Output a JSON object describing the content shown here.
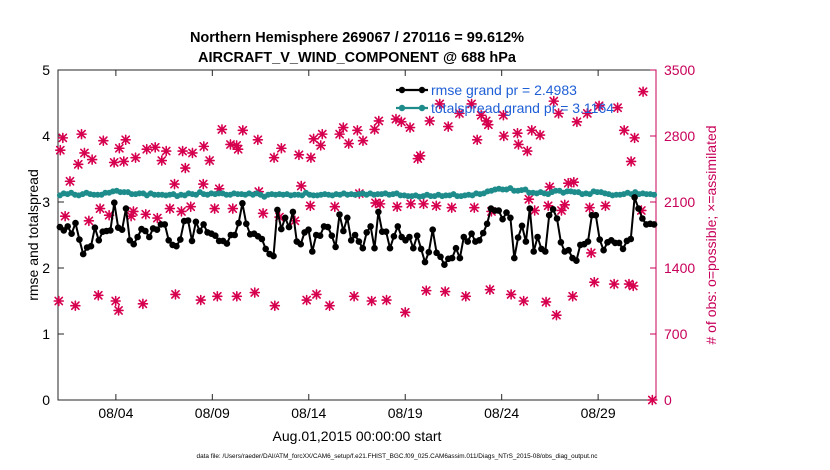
{
  "chart_data": {
    "type": "line",
    "title": [
      "Northern Hemisphere 269067 / 270116 = 99.612%",
      "AIRCRAFT_V_WIND_COMPONENT @ 688 hPa"
    ],
    "xlabel": "Aug.01,2015 00:00:00 start",
    "ylabel_left": "rmse and totalspread",
    "ylabel_right": "# of obs: o=possible; ×=assimilated",
    "footnote": "data file: /Users/raeder/DAI/ATM_forcXX/CAM6_setup/f.e21.FHIST_BGC.f09_025.CAM6assim.011/Diags_NTrS_2015-08/obs_diag_output.nc",
    "x_range_days": [
      0,
      31
    ],
    "xticks": [
      {
        "day": 3,
        "label": "08/04"
      },
      {
        "day": 8,
        "label": "08/09"
      },
      {
        "day": 13,
        "label": "08/14"
      },
      {
        "day": 18,
        "label": "08/19"
      },
      {
        "day": 23,
        "label": "08/24"
      },
      {
        "day": 28,
        "label": "08/29"
      }
    ],
    "ylim_left": [
      0,
      5
    ],
    "yticks_left": [
      "0",
      "1",
      "2",
      "3",
      "4",
      "5"
    ],
    "ylim_right": [
      0,
      3500
    ],
    "yticks_right": [
      "0",
      "700",
      "1400",
      "2100",
      "2800",
      "3500"
    ],
    "colors": {
      "rmse": "#000000",
      "spread": "#1f8c8c",
      "obs": "#d6004f",
      "legend_text": "#1f5fd6",
      "axis_right": "#c8005a"
    },
    "legend": [
      {
        "key": "rmse",
        "label": "rmse grand pr = 2.4983"
      },
      {
        "key": "spread",
        "label": "totalspread grand pr = 3.1164"
      }
    ],
    "series_rmse": [
      2.62,
      2.57,
      2.63,
      2.52,
      2.68,
      2.43,
      2.21,
      2.31,
      2.33,
      2.61,
      2.42,
      2.55,
      2.56,
      2.57,
      2.99,
      2.61,
      2.58,
      2.9,
      2.42,
      2.36,
      2.47,
      2.59,
      2.56,
      2.47,
      2.6,
      2.58,
      2.66,
      2.66,
      2.42,
      2.35,
      2.33,
      2.43,
      2.71,
      2.72,
      2.41,
      2.7,
      2.56,
      2.66,
      2.54,
      2.52,
      2.49,
      2.41,
      2.41,
      2.37,
      2.5,
      2.5,
      2.68,
      2.98,
      2.67,
      2.51,
      2.52,
      2.48,
      2.44,
      2.29,
      2.21,
      2.18,
      2.88,
      2.59,
      2.76,
      2.62,
      2.85,
      2.4,
      2.36,
      2.54,
      2.58,
      2.25,
      2.5,
      2.49,
      2.63,
      2.62,
      2.49,
      2.32,
      2.81,
      2.56,
      2.76,
      2.42,
      2.5,
      2.4,
      2.3,
      2.54,
      2.63,
      2.3,
      2.85,
      2.55,
      2.55,
      2.3,
      2.48,
      2.63,
      2.47,
      2.42,
      2.47,
      2.3,
      2.49,
      2.29,
      2.09,
      2.24,
      2.58,
      2.23,
      2.17,
      2.05,
      2.14,
      2.15,
      2.3,
      2.15,
      2.47,
      2.4,
      2.52,
      2.4,
      2.42,
      2.53,
      2.67,
      2.9,
      2.87,
      2.87,
      2.74,
      2.84,
      2.76,
      2.15,
      2.46,
      2.64,
      2.4,
      2.9,
      2.25,
      2.47,
      2.29,
      2.25,
      2.8,
      2.89,
      2.75,
      2.39,
      2.25,
      2.27,
      2.15,
      2.11,
      2.35,
      2.36,
      2.4,
      2.8,
      2.8,
      2.43,
      2.27,
      2.39,
      2.42,
      2.38,
      2.38,
      2.29,
      2.41,
      2.44,
      3.07,
      2.9,
      2.75,
      2.66,
      2.67,
      2.66
    ],
    "series_spread": [
      3.1,
      3.13,
      3.12,
      3.14,
      3.11,
      3.1,
      3.12,
      3.14,
      3.12,
      3.11,
      3.11,
      3.11,
      3.14,
      3.14,
      3.16,
      3.17,
      3.15,
      3.15,
      3.15,
      3.12,
      3.12,
      3.13,
      3.13,
      3.1,
      3.13,
      3.11,
      3.11,
      3.11,
      3.1,
      3.11,
      3.12,
      3.09,
      3.11,
      3.1,
      3.13,
      3.12,
      3.11,
      3.15,
      3.12,
      3.11,
      3.13,
      3.12,
      3.13,
      3.13,
      3.11,
      3.11,
      3.13,
      3.12,
      3.12,
      3.11,
      3.13,
      3.11,
      3.13,
      3.11,
      3.08,
      3.11,
      3.12,
      3.11,
      3.12,
      3.11,
      3.12,
      3.1,
      3.11,
      3.11,
      3.1,
      3.14,
      3.11,
      3.1,
      3.1,
      3.11,
      3.12,
      3.11,
      3.1,
      3.12,
      3.11,
      3.13,
      3.11,
      3.12,
      3.11,
      3.12,
      3.13,
      3.11,
      3.13,
      3.11,
      3.12,
      3.12,
      3.13,
      3.11,
      3.12,
      3.13,
      3.1,
      3.1,
      3.09,
      3.09,
      3.1,
      3.08,
      3.09,
      3.11,
      3.09,
      3.09,
      3.11,
      3.09,
      3.1,
      3.1,
      3.12,
      3.09,
      3.09,
      3.1,
      3.11,
      3.1,
      3.13,
      3.12,
      3.13,
      3.16,
      3.17,
      3.19,
      3.2,
      3.19,
      3.19,
      3.21,
      3.17,
      3.17,
      3.18,
      3.19,
      3.14,
      3.14,
      3.13,
      3.15,
      3.13,
      3.12,
      3.15,
      3.17,
      3.17,
      3.14,
      3.16,
      3.16,
      3.15,
      3.15,
      3.12,
      3.13,
      3.12,
      3.16,
      3.15,
      3.15,
      3.13,
      3.12,
      3.1,
      3.11,
      3.11,
      3.12,
      3.14,
      3.12,
      3.15,
      3.12,
      3.13,
      3.12,
      3.12,
      3.11
    ],
    "obs_points": [
      [
        0.04,
        1050
      ],
      [
        0.12,
        2650
      ],
      [
        0.25,
        2780
      ],
      [
        0.37,
        1950
      ],
      [
        0.62,
        2320
      ],
      [
        0.9,
        1000
      ],
      [
        1.05,
        2500
      ],
      [
        1.22,
        2820
      ],
      [
        1.37,
        2620
      ],
      [
        1.6,
        1900
      ],
      [
        1.77,
        2550
      ],
      [
        2.09,
        1110
      ],
      [
        2.18,
        2030
      ],
      [
        2.35,
        2750
      ],
      [
        2.65,
        1960
      ],
      [
        2.91,
        2520
      ],
      [
        2.99,
        1050
      ],
      [
        3.14,
        950
      ],
      [
        3.18,
        2670
      ],
      [
        3.41,
        2530
      ],
      [
        3.51,
        2760
      ],
      [
        3.79,
        1950
      ],
      [
        3.91,
        2000
      ],
      [
        4.02,
        2570
      ],
      [
        4.4,
        1020
      ],
      [
        4.55,
        1970
      ],
      [
        4.6,
        2660
      ],
      [
        5.04,
        2680
      ],
      [
        5.15,
        1930
      ],
      [
        5.38,
        2540
      ],
      [
        5.61,
        2640
      ],
      [
        5.8,
        2030
      ],
      [
        6.04,
        2290
      ],
      [
        6.09,
        1120
      ],
      [
        6.4,
        2000
      ],
      [
        6.46,
        2640
      ],
      [
        6.6,
        2460
      ],
      [
        6.88,
        2050
      ],
      [
        6.97,
        2620
      ],
      [
        7.4,
        1060
      ],
      [
        7.53,
        2290
      ],
      [
        7.56,
        2690
      ],
      [
        7.86,
        2540
      ],
      [
        8.12,
        2030
      ],
      [
        8.26,
        1100
      ],
      [
        8.36,
        2240
      ],
      [
        8.5,
        2870
      ],
      [
        8.94,
        2710
      ],
      [
        9.06,
        2030
      ],
      [
        9.26,
        2700
      ],
      [
        9.27,
        1100
      ],
      [
        9.34,
        2660
      ],
      [
        9.58,
        2860
      ],
      [
        10.2,
        1140
      ],
      [
        10.36,
        2760
      ],
      [
        10.41,
        2210
      ],
      [
        10.63,
        1980
      ],
      [
        11.2,
        2570
      ],
      [
        11.24,
        1000
      ],
      [
        11.48,
        1940
      ],
      [
        11.58,
        2670
      ],
      [
        12.28,
        1900
      ],
      [
        12.49,
        2600
      ],
      [
        12.61,
        2270
      ],
      [
        12.89,
        1060
      ],
      [
        13.08,
        2060
      ],
      [
        13.11,
        2570
      ],
      [
        13.25,
        2770
      ],
      [
        13.4,
        1120
      ],
      [
        13.62,
        2700
      ],
      [
        13.7,
        2820
      ],
      [
        14.08,
        1000
      ],
      [
        14.35,
        2050
      ],
      [
        14.6,
        2820
      ],
      [
        14.79,
        2890
      ],
      [
        15.07,
        2720
      ],
      [
        15.35,
        1100
      ],
      [
        15.52,
        2860
      ],
      [
        15.62,
        2190
      ],
      [
        15.81,
        2750
      ],
      [
        16.26,
        1050
      ],
      [
        16.41,
        2870
      ],
      [
        16.46,
        2090
      ],
      [
        16.63,
        2960
      ],
      [
        16.7,
        2080
      ],
      [
        17.03,
        1060
      ],
      [
        17.52,
        2980
      ],
      [
        17.58,
        2050
      ],
      [
        17.8,
        2950
      ],
      [
        18.0,
        930
      ],
      [
        18.25,
        2890
      ],
      [
        18.29,
        2080
      ],
      [
        18.65,
        2560
      ],
      [
        18.78,
        2590
      ],
      [
        18.95,
        2080
      ],
      [
        19.09,
        1160
      ],
      [
        19.27,
        2960
      ],
      [
        19.61,
        2060
      ],
      [
        19.79,
        3140
      ],
      [
        20.07,
        1150
      ],
      [
        20.23,
        2900
      ],
      [
        20.41,
        2040
      ],
      [
        20.81,
        3040
      ],
      [
        21.14,
        1100
      ],
      [
        21.44,
        3140
      ],
      [
        21.58,
        2040
      ],
      [
        21.73,
        2760
      ],
      [
        21.94,
        3020
      ],
      [
        22.2,
        2960
      ],
      [
        22.31,
        2920
      ],
      [
        22.39,
        1170
      ],
      [
        22.47,
        2000
      ],
      [
        23.09,
        3020
      ],
      [
        23.11,
        2800
      ],
      [
        23.49,
        1120
      ],
      [
        23.82,
        2830
      ],
      [
        23.87,
        2710
      ],
      [
        24.14,
        1050
      ],
      [
        24.33,
        2640
      ],
      [
        24.41,
        2130
      ],
      [
        24.56,
        2860
      ],
      [
        24.71,
        2010
      ],
      [
        24.99,
        2810
      ],
      [
        25.3,
        1040
      ],
      [
        25.41,
        2060
      ],
      [
        25.49,
        2260
      ],
      [
        25.7,
        3170
      ],
      [
        25.84,
        900
      ],
      [
        25.95,
        3040
      ],
      [
        26.1,
        2010
      ],
      [
        26.27,
        2070
      ],
      [
        26.45,
        2300
      ],
      [
        26.68,
        1100
      ],
      [
        26.74,
        2310
      ],
      [
        26.9,
        2950
      ],
      [
        27.44,
        3040
      ],
      [
        27.56,
        2040
      ],
      [
        27.64,
        1560
      ],
      [
        27.8,
        1250
      ],
      [
        28.05,
        3120
      ],
      [
        28.38,
        2060
      ],
      [
        28.83,
        1230
      ],
      [
        29.01,
        3100
      ],
      [
        29.35,
        2860
      ],
      [
        29.6,
        1230
      ],
      [
        29.71,
        2530
      ],
      [
        29.82,
        1210
      ],
      [
        29.89,
        2780
      ],
      [
        30.24,
        2010
      ],
      [
        30.33,
        3270
      ],
      [
        30.81,
        0
      ]
    ]
  }
}
